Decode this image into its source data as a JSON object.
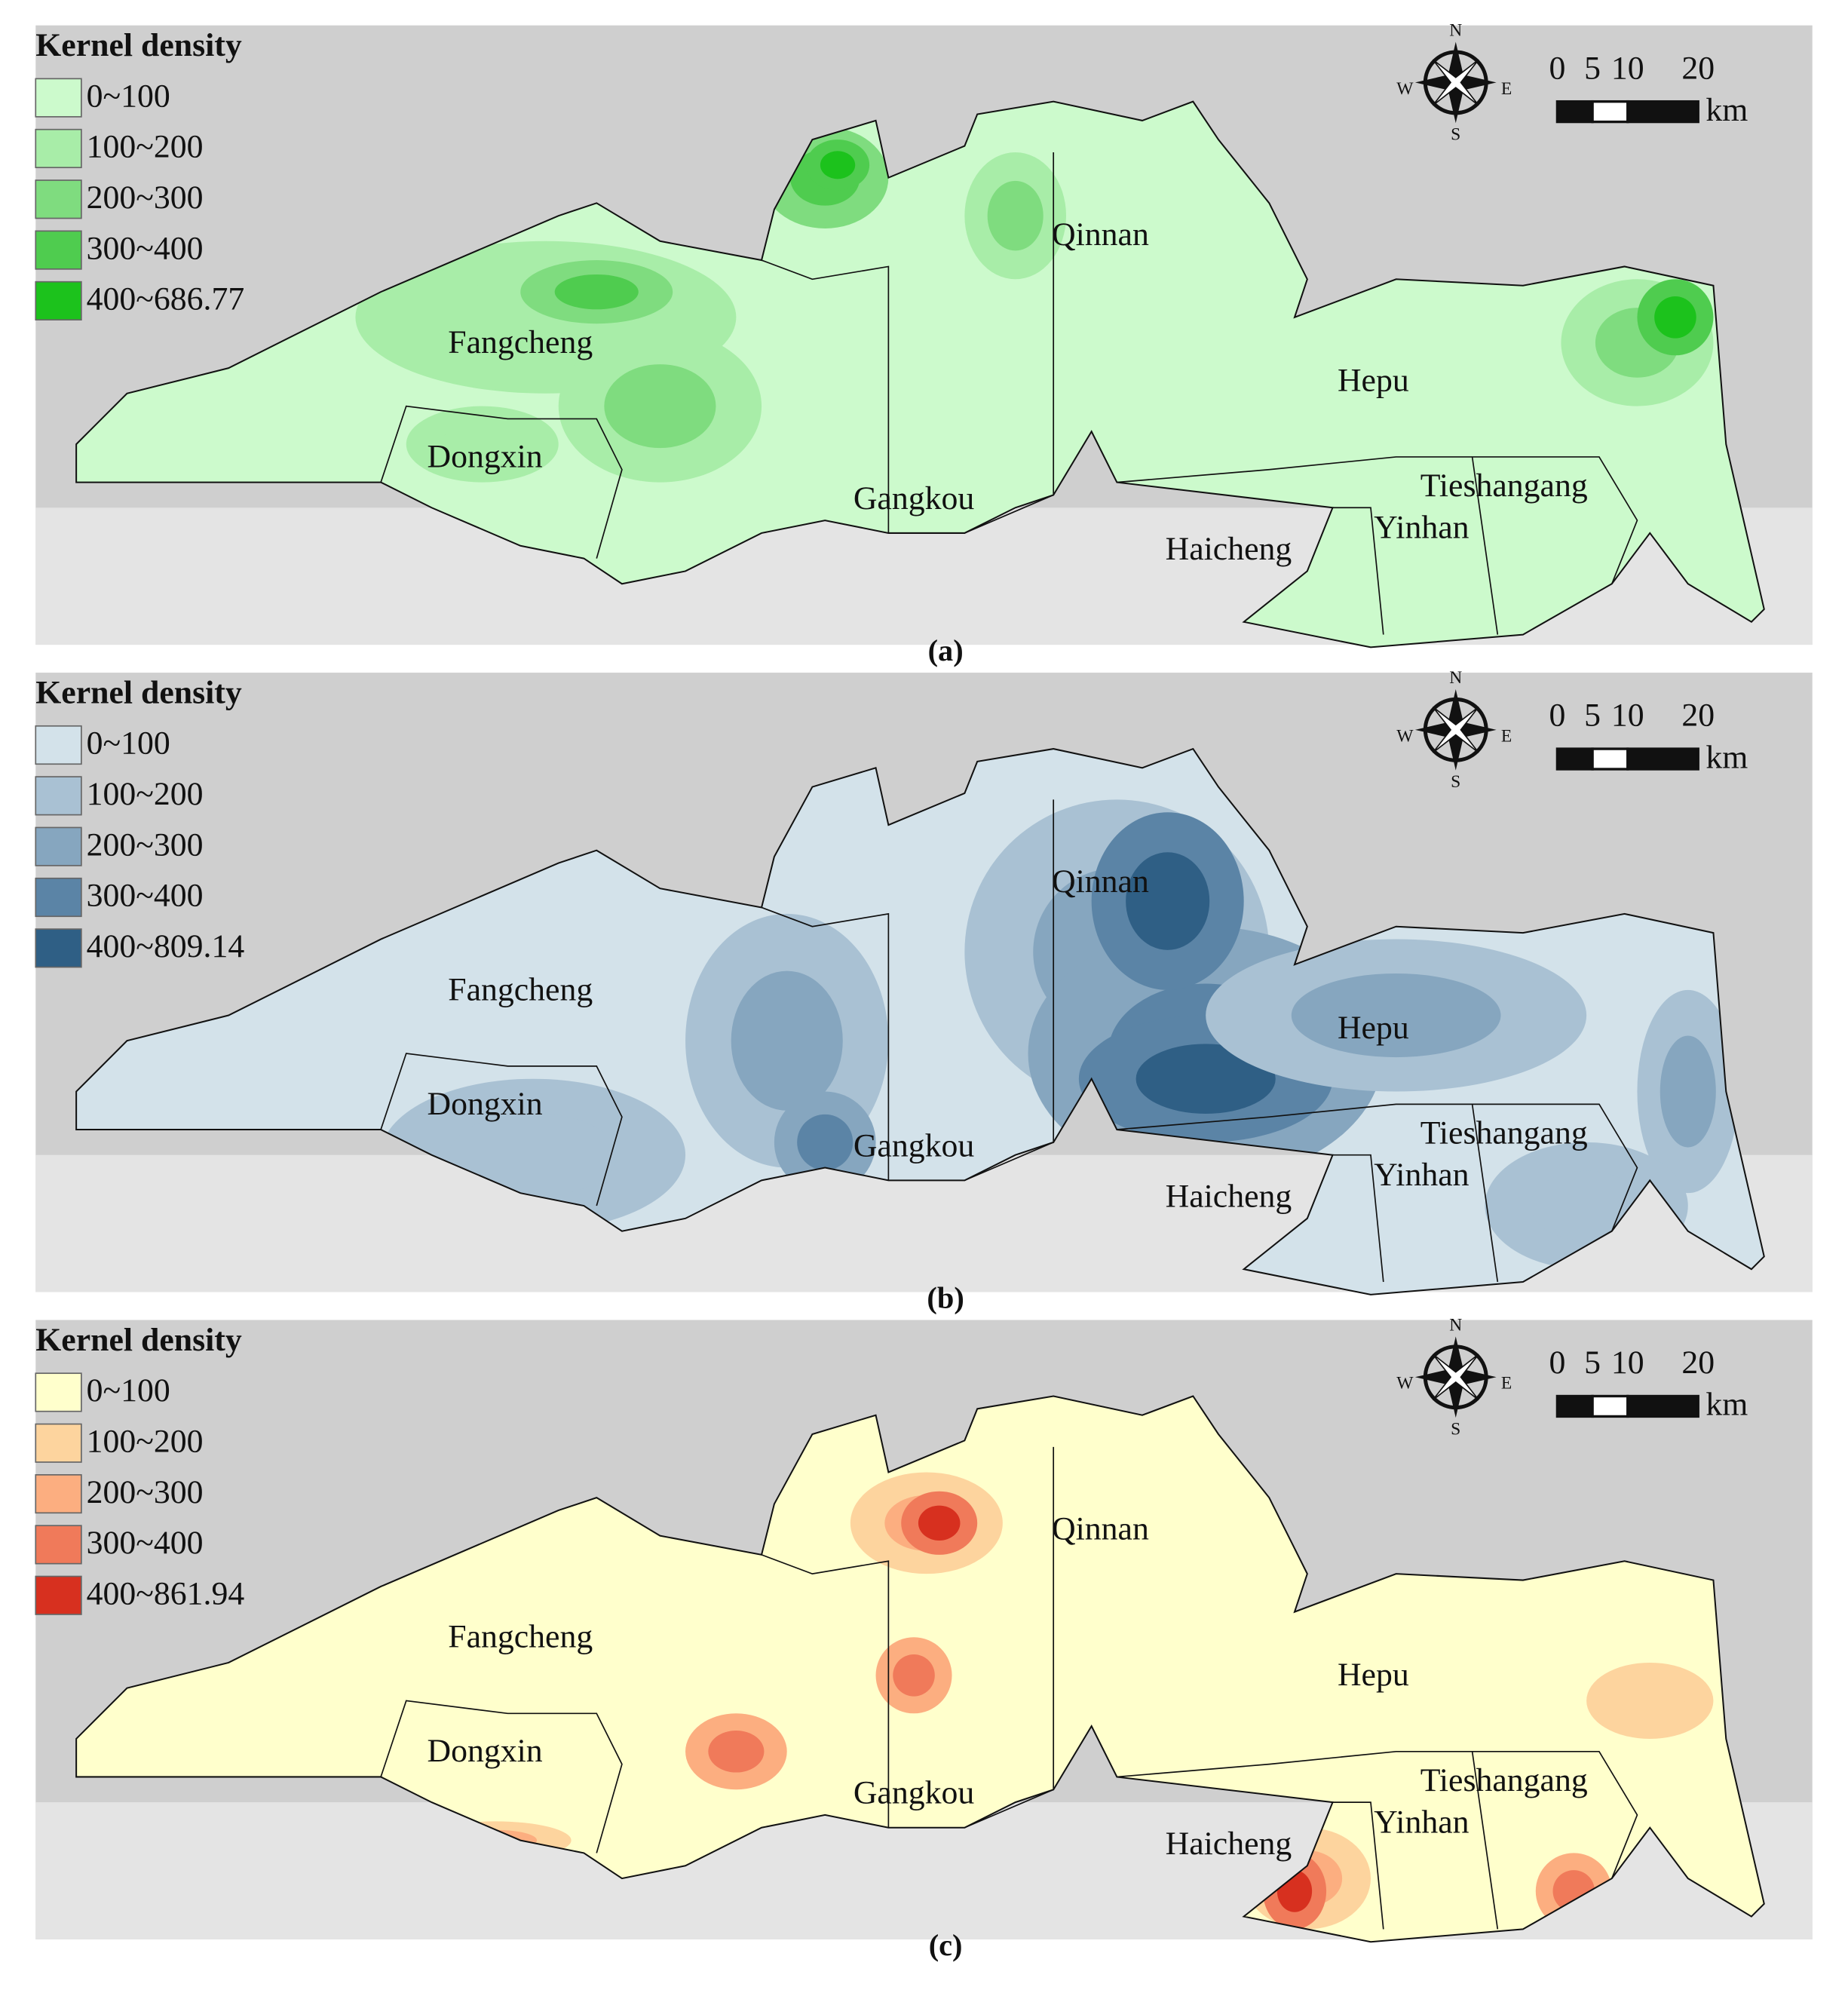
{
  "panels": [
    {
      "caption": "(a)",
      "legend": {
        "title": "Kernel density",
        "items": [
          {
            "label": "0~100",
            "color": "#ccfacc"
          },
          {
            "label": "100~200",
            "color": "#a8eda8"
          },
          {
            "label": "200~300",
            "color": "#7fdc7f"
          },
          {
            "label": "300~400",
            "color": "#4fcc4f"
          },
          {
            "label": "400~686.77",
            "color": "#1cc21c"
          }
        ]
      }
    },
    {
      "caption": "(b)",
      "legend": {
        "title": "Kernel density",
        "items": [
          {
            "label": "0~100",
            "color": "#d3e2ea"
          },
          {
            "label": "100~200",
            "color": "#a9c1d3"
          },
          {
            "label": "200~300",
            "color": "#86a6bf"
          },
          {
            "label": "300~400",
            "color": "#5b84a6"
          },
          {
            "label": "400~809.14",
            "color": "#2f5f85"
          }
        ]
      }
    },
    {
      "caption": "(c)",
      "legend": {
        "title": "Kernel density",
        "items": [
          {
            "label": "0~100",
            "color": "#ffffcc"
          },
          {
            "label": "100~200",
            "color": "#fdd49e"
          },
          {
            "label": "200~300",
            "color": "#fcae80"
          },
          {
            "label": "300~400",
            "color": "#f07a5a"
          },
          {
            "label": "400~861.94",
            "color": "#d7301f"
          }
        ]
      }
    }
  ],
  "places": [
    "Fangcheng",
    "Dongxin",
    "Gangkou",
    "Qinnan",
    "Hepu",
    "Tieshangang",
    "Yinhan",
    "Haicheng"
  ],
  "compass": {
    "north": "N",
    "south": "S",
    "east": "E",
    "west": "W"
  },
  "scale": {
    "ticks": [
      0,
      5,
      10,
      20
    ],
    "unit": "km"
  }
}
